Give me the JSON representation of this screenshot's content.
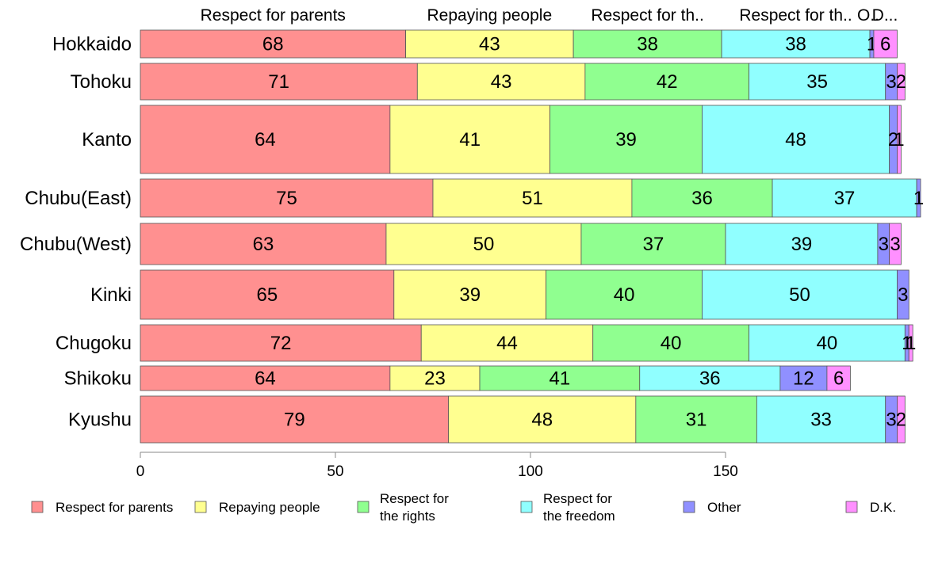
{
  "chart_data": {
    "type": "bar",
    "orientation": "horizontal",
    "stacked": true,
    "row_height_varies": true,
    "categories": [
      "Hokkaido",
      "Tohoku",
      "Kanto",
      "Chubu(East)",
      "Chubu(West)",
      "Kinki",
      "Chugoku",
      "Shikoku",
      "Kyushu"
    ],
    "series": [
      {
        "name": "Respect for parents",
        "color": "#ff9090",
        "values": [
          68,
          71,
          64,
          75,
          63,
          65,
          72,
          64,
          79
        ]
      },
      {
        "name": "Repaying people",
        "color": "#ffff90",
        "values": [
          43,
          43,
          41,
          51,
          50,
          39,
          44,
          23,
          48
        ]
      },
      {
        "name": "Respect for the rights",
        "color": "#90ff90",
        "values": [
          38,
          42,
          39,
          36,
          37,
          40,
          40,
          41,
          31
        ]
      },
      {
        "name": "Respect for the freedom",
        "color": "#90ffff",
        "values": [
          38,
          35,
          48,
          37,
          39,
          50,
          40,
          36,
          33
        ]
      },
      {
        "name": "Other",
        "color": "#9090ff",
        "values": [
          1,
          3,
          2,
          1,
          3,
          3,
          1,
          12,
          3
        ]
      },
      {
        "name": "D.K.",
        "color": "#ff90ff",
        "values": [
          6,
          2,
          1,
          0,
          3,
          0,
          1,
          6,
          2
        ]
      }
    ],
    "top_labels": [
      "Respect for parents",
      "Repaying people",
      "Respect for th..",
      "Respect for th..",
      "O..",
      "D..."
    ],
    "legend_labels": [
      "Respect for parents",
      "Repaying people",
      "Respect for\nthe rights",
      "Respect for\nthe freedom",
      "Other",
      "D.K."
    ],
    "xticks": [
      0,
      50,
      100,
      150
    ],
    "xlim": [
      0,
      200
    ],
    "legend_position": "bottom",
    "grid": false
  }
}
